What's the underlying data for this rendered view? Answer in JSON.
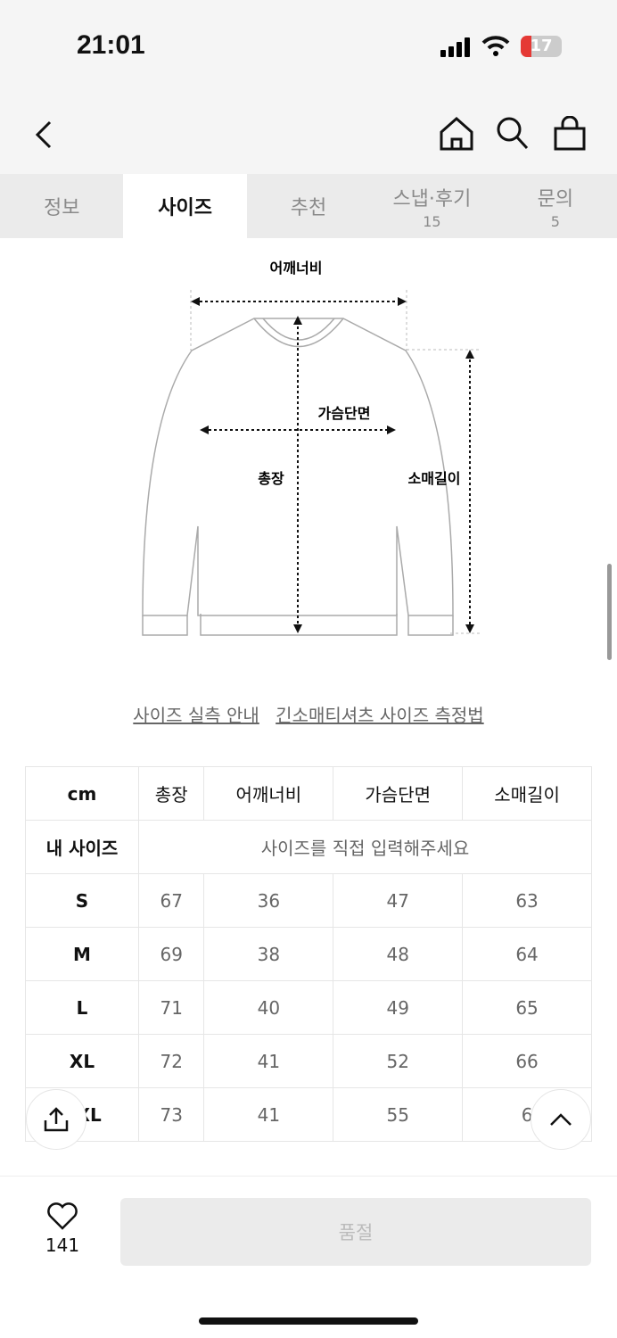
{
  "status": {
    "time": "21:01",
    "battery": "17"
  },
  "nav": {
    "icons": [
      "back-icon",
      "home-icon",
      "search-icon",
      "bag-icon"
    ]
  },
  "tabs": [
    {
      "label": "정보",
      "count": ""
    },
    {
      "label": "사이즈",
      "count": ""
    },
    {
      "label": "추천",
      "count": ""
    },
    {
      "label": "스냅·후기",
      "count": "15"
    },
    {
      "label": "문의",
      "count": "5"
    }
  ],
  "active_tab": "사이즈",
  "diagram": {
    "shoulder": "어깨너비",
    "chest": "가슴단면",
    "length": "총장",
    "sleeve": "소매길이"
  },
  "links": {
    "guide": "사이즈 실측 안내",
    "method": "긴소매티셔츠 사이즈 측정법"
  },
  "table": {
    "headers": [
      "cm",
      "총장",
      "어깨너비",
      "가슴단면",
      "소매길이"
    ],
    "my_size": {
      "label": "내 사이즈",
      "placeholder": "사이즈를 직접 입력해주세요"
    },
    "rows": [
      [
        "S",
        "67",
        "36",
        "47",
        "63"
      ],
      [
        "M",
        "69",
        "38",
        "48",
        "64"
      ],
      [
        "L",
        "71",
        "40",
        "49",
        "65"
      ],
      [
        "XL",
        "72",
        "41",
        "52",
        "66"
      ],
      [
        "XXL",
        "73",
        "41",
        "55",
        "6"
      ]
    ]
  },
  "bottom": {
    "likes": "141",
    "buy_label": "품절"
  }
}
